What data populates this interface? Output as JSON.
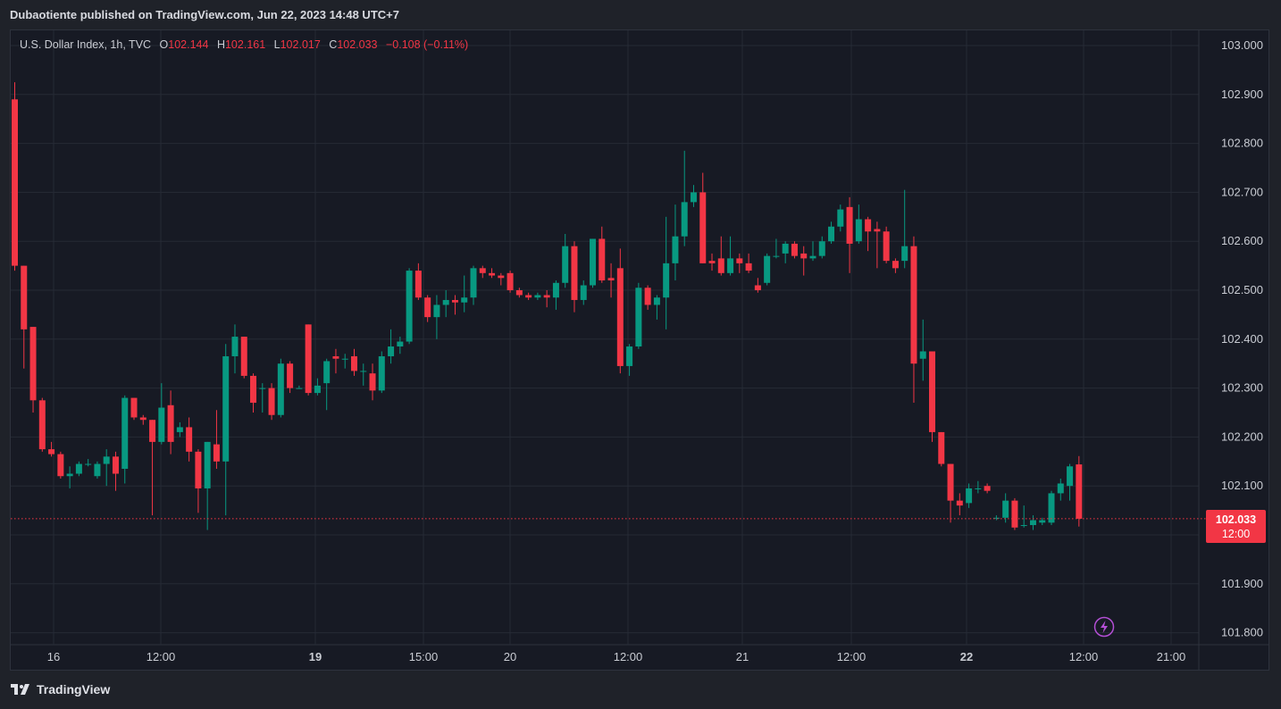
{
  "header": {
    "published": "Dubaotiente published on TradingView.com, Jun 22, 2023 14:48 UTC+7"
  },
  "legend": {
    "symbol": "U.S. Dollar Index, 1h, TVC",
    "o_label": "O",
    "o_value": "102.144",
    "h_label": "H",
    "h_value": "102.161",
    "l_label": "L",
    "l_value": "102.017",
    "c_label": "C",
    "c_value": "102.033",
    "change": "−0.108 (−0.11%)"
  },
  "price_tag": {
    "price": "102.033",
    "time": "12:00"
  },
  "brand": {
    "name": "TradingView"
  },
  "colors": {
    "up": "#089981",
    "down": "#f23645",
    "grid": "#262a35",
    "axis_text": "#c9ccd3",
    "background": "#171a24"
  },
  "chart_data": {
    "type": "candlestick",
    "ylim": [
      101.78,
      103.03
    ],
    "y_ticks": [
      "103.000",
      "102.900",
      "102.800",
      "102.700",
      "102.600",
      "102.500",
      "102.400",
      "102.300",
      "102.200",
      "102.100",
      "101.900",
      "101.800"
    ],
    "x_ticks": [
      "16",
      "12:00",
      "19",
      "15:00",
      "20",
      "12:00",
      "21",
      "12:00",
      "22",
      "12:00",
      "21:00"
    ],
    "last_price": 102.033,
    "candles": [
      {
        "o": 102.89,
        "h": 102.925,
        "l": 102.54,
        "c": 102.55
      },
      {
        "o": 102.55,
        "h": 102.55,
        "l": 102.34,
        "c": 102.42
      },
      {
        "o": 102.425,
        "h": 102.425,
        "l": 102.25,
        "c": 102.275
      },
      {
        "o": 102.275,
        "h": 102.28,
        "l": 102.17,
        "c": 102.175
      },
      {
        "o": 102.175,
        "h": 102.19,
        "l": 102.16,
        "c": 102.165
      },
      {
        "o": 102.165,
        "h": 102.17,
        "l": 102.115,
        "c": 102.12
      },
      {
        "o": 102.12,
        "h": 102.14,
        "l": 102.095,
        "c": 102.125
      },
      {
        "o": 102.125,
        "h": 102.15,
        "l": 102.12,
        "c": 102.145
      },
      {
        "o": 102.145,
        "h": 102.155,
        "l": 102.14,
        "c": 102.145
      },
      {
        "o": 102.12,
        "h": 102.15,
        "l": 102.115,
        "c": 102.145
      },
      {
        "o": 102.145,
        "h": 102.175,
        "l": 102.1,
        "c": 102.16
      },
      {
        "o": 102.16,
        "h": 102.17,
        "l": 102.09,
        "c": 102.125
      },
      {
        "o": 102.135,
        "h": 102.285,
        "l": 102.105,
        "c": 102.28
      },
      {
        "o": 102.28,
        "h": 102.28,
        "l": 102.235,
        "c": 102.24
      },
      {
        "o": 102.24,
        "h": 102.245,
        "l": 102.225,
        "c": 102.235
      },
      {
        "o": 102.235,
        "h": 102.235,
        "l": 102.04,
        "c": 102.19
      },
      {
        "o": 102.19,
        "h": 102.31,
        "l": 102.185,
        "c": 102.26
      },
      {
        "o": 102.265,
        "h": 102.295,
        "l": 102.165,
        "c": 102.19
      },
      {
        "o": 102.21,
        "h": 102.23,
        "l": 102.2,
        "c": 102.22
      },
      {
        "o": 102.22,
        "h": 102.24,
        "l": 102.15,
        "c": 102.17
      },
      {
        "o": 102.17,
        "h": 102.175,
        "l": 102.045,
        "c": 102.095
      },
      {
        "o": 102.095,
        "h": 102.19,
        "l": 102.01,
        "c": 102.19
      },
      {
        "o": 102.185,
        "h": 102.255,
        "l": 102.135,
        "c": 102.15
      },
      {
        "o": 102.15,
        "h": 102.39,
        "l": 102.04,
        "c": 102.365
      },
      {
        "o": 102.365,
        "h": 102.43,
        "l": 102.33,
        "c": 102.405
      },
      {
        "o": 102.405,
        "h": 102.405,
        "l": 102.32,
        "c": 102.325
      },
      {
        "o": 102.325,
        "h": 102.33,
        "l": 102.25,
        "c": 102.27
      },
      {
        "o": 102.3,
        "h": 102.31,
        "l": 102.25,
        "c": 102.3
      },
      {
        "o": 102.3,
        "h": 102.31,
        "l": 102.235,
        "c": 102.245
      },
      {
        "o": 102.245,
        "h": 102.36,
        "l": 102.24,
        "c": 102.35
      },
      {
        "o": 102.35,
        "h": 102.355,
        "l": 102.29,
        "c": 102.3
      },
      {
        "o": 102.3,
        "h": 102.305,
        "l": 102.3,
        "c": 102.3
      },
      {
        "o": 102.43,
        "h": 102.43,
        "l": 102.285,
        "c": 102.29
      },
      {
        "o": 102.29,
        "h": 102.32,
        "l": 102.285,
        "c": 102.305
      },
      {
        "o": 102.31,
        "h": 102.36,
        "l": 102.255,
        "c": 102.355
      },
      {
        "o": 102.365,
        "h": 102.38,
        "l": 102.33,
        "c": 102.36
      },
      {
        "o": 102.36,
        "h": 102.37,
        "l": 102.34,
        "c": 102.36
      },
      {
        "o": 102.365,
        "h": 102.38,
        "l": 102.325,
        "c": 102.335
      },
      {
        "o": 102.335,
        "h": 102.35,
        "l": 102.305,
        "c": 102.335
      },
      {
        "o": 102.33,
        "h": 102.35,
        "l": 102.275,
        "c": 102.295
      },
      {
        "o": 102.295,
        "h": 102.375,
        "l": 102.29,
        "c": 102.365
      },
      {
        "o": 102.365,
        "h": 102.42,
        "l": 102.35,
        "c": 102.385
      },
      {
        "o": 102.385,
        "h": 102.405,
        "l": 102.37,
        "c": 102.395
      },
      {
        "o": 102.395,
        "h": 102.545,
        "l": 102.39,
        "c": 102.54
      },
      {
        "o": 102.54,
        "h": 102.555,
        "l": 102.48,
        "c": 102.485
      },
      {
        "o": 102.485,
        "h": 102.49,
        "l": 102.435,
        "c": 102.445
      },
      {
        "o": 102.445,
        "h": 102.49,
        "l": 102.4,
        "c": 102.47
      },
      {
        "o": 102.47,
        "h": 102.5,
        "l": 102.445,
        "c": 102.48
      },
      {
        "o": 102.48,
        "h": 102.49,
        "l": 102.45,
        "c": 102.475
      },
      {
        "o": 102.475,
        "h": 102.53,
        "l": 102.455,
        "c": 102.485
      },
      {
        "o": 102.485,
        "h": 102.55,
        "l": 102.47,
        "c": 102.545
      },
      {
        "o": 102.545,
        "h": 102.55,
        "l": 102.525,
        "c": 102.535
      },
      {
        "o": 102.535,
        "h": 102.545,
        "l": 102.525,
        "c": 102.53
      },
      {
        "o": 102.53,
        "h": 102.535,
        "l": 102.51,
        "c": 102.525
      },
      {
        "o": 102.535,
        "h": 102.54,
        "l": 102.495,
        "c": 102.5
      },
      {
        "o": 102.5,
        "h": 102.505,
        "l": 102.485,
        "c": 102.49
      },
      {
        "o": 102.49,
        "h": 102.495,
        "l": 102.48,
        "c": 102.485
      },
      {
        "o": 102.485,
        "h": 102.495,
        "l": 102.48,
        "c": 102.49
      },
      {
        "o": 102.49,
        "h": 102.5,
        "l": 102.465,
        "c": 102.485
      },
      {
        "o": 102.485,
        "h": 102.52,
        "l": 102.46,
        "c": 102.515
      },
      {
        "o": 102.515,
        "h": 102.615,
        "l": 102.505,
        "c": 102.59
      },
      {
        "o": 102.59,
        "h": 102.6,
        "l": 102.455,
        "c": 102.48
      },
      {
        "o": 102.48,
        "h": 102.52,
        "l": 102.47,
        "c": 102.51
      },
      {
        "o": 102.51,
        "h": 102.605,
        "l": 102.505,
        "c": 102.605
      },
      {
        "o": 102.605,
        "h": 102.63,
        "l": 102.515,
        "c": 102.52
      },
      {
        "o": 102.525,
        "h": 102.555,
        "l": 102.485,
        "c": 102.52
      },
      {
        "o": 102.545,
        "h": 102.585,
        "l": 102.33,
        "c": 102.345
      },
      {
        "o": 102.345,
        "h": 102.39,
        "l": 102.325,
        "c": 102.385
      },
      {
        "o": 102.385,
        "h": 102.515,
        "l": 102.38,
        "c": 102.505
      },
      {
        "o": 102.505,
        "h": 102.51,
        "l": 102.46,
        "c": 102.47
      },
      {
        "o": 102.47,
        "h": 102.49,
        "l": 102.44,
        "c": 102.485
      },
      {
        "o": 102.485,
        "h": 102.65,
        "l": 102.42,
        "c": 102.555
      },
      {
        "o": 102.555,
        "h": 102.675,
        "l": 102.52,
        "c": 102.61
      },
      {
        "o": 102.61,
        "h": 102.785,
        "l": 102.59,
        "c": 102.68
      },
      {
        "o": 102.68,
        "h": 102.715,
        "l": 102.67,
        "c": 102.7
      },
      {
        "o": 102.7,
        "h": 102.74,
        "l": 102.555,
        "c": 102.555
      },
      {
        "o": 102.56,
        "h": 102.575,
        "l": 102.54,
        "c": 102.555
      },
      {
        "o": 102.565,
        "h": 102.61,
        "l": 102.53,
        "c": 102.535
      },
      {
        "o": 102.535,
        "h": 102.61,
        "l": 102.53,
        "c": 102.565
      },
      {
        "o": 102.565,
        "h": 102.575,
        "l": 102.535,
        "c": 102.555
      },
      {
        "o": 102.555,
        "h": 102.575,
        "l": 102.535,
        "c": 102.54
      },
      {
        "o": 102.51,
        "h": 102.525,
        "l": 102.495,
        "c": 102.5
      },
      {
        "o": 102.515,
        "h": 102.575,
        "l": 102.51,
        "c": 102.57
      },
      {
        "o": 102.57,
        "h": 102.605,
        "l": 102.565,
        "c": 102.57
      },
      {
        "o": 102.575,
        "h": 102.6,
        "l": 102.555,
        "c": 102.595
      },
      {
        "o": 102.595,
        "h": 102.6,
        "l": 102.565,
        "c": 102.57
      },
      {
        "o": 102.575,
        "h": 102.59,
        "l": 102.53,
        "c": 102.565
      },
      {
        "o": 102.565,
        "h": 102.6,
        "l": 102.56,
        "c": 102.57
      },
      {
        "o": 102.57,
        "h": 102.61,
        "l": 102.565,
        "c": 102.6
      },
      {
        "o": 102.6,
        "h": 102.64,
        "l": 102.595,
        "c": 102.63
      },
      {
        "o": 102.63,
        "h": 102.675,
        "l": 102.62,
        "c": 102.665
      },
      {
        "o": 102.67,
        "h": 102.69,
        "l": 102.535,
        "c": 102.595
      },
      {
        "o": 102.6,
        "h": 102.675,
        "l": 102.595,
        "c": 102.645
      },
      {
        "o": 102.645,
        "h": 102.65,
        "l": 102.58,
        "c": 102.62
      },
      {
        "o": 102.625,
        "h": 102.64,
        "l": 102.545,
        "c": 102.62
      },
      {
        "o": 102.62,
        "h": 102.63,
        "l": 102.555,
        "c": 102.56
      },
      {
        "o": 102.56,
        "h": 102.565,
        "l": 102.535,
        "c": 102.545
      },
      {
        "o": 102.56,
        "h": 102.705,
        "l": 102.545,
        "c": 102.59
      },
      {
        "o": 102.59,
        "h": 102.61,
        "l": 102.27,
        "c": 102.35
      },
      {
        "o": 102.36,
        "h": 102.44,
        "l": 102.315,
        "c": 102.375
      },
      {
        "o": 102.375,
        "h": 102.375,
        "l": 102.19,
        "c": 102.21
      },
      {
        "o": 102.21,
        "h": 102.21,
        "l": 102.14,
        "c": 102.145
      },
      {
        "o": 102.145,
        "h": 102.145,
        "l": 102.025,
        "c": 102.07
      },
      {
        "o": 102.07,
        "h": 102.085,
        "l": 102.04,
        "c": 102.06
      },
      {
        "o": 102.065,
        "h": 102.105,
        "l": 102.055,
        "c": 102.095
      },
      {
        "o": 102.095,
        "h": 102.11,
        "l": 102.085,
        "c": 102.095
      },
      {
        "o": 102.1,
        "h": 102.105,
        "l": 102.085,
        "c": 102.09
      },
      {
        "o": 102.035,
        "h": 102.04,
        "l": 102.03,
        "c": 102.035
      },
      {
        "o": 102.035,
        "h": 102.085,
        "l": 102.025,
        "c": 102.07
      },
      {
        "o": 102.07,
        "h": 102.075,
        "l": 102.01,
        "c": 102.015
      },
      {
        "o": 102.02,
        "h": 102.06,
        "l": 102.015,
        "c": 102.02
      },
      {
        "o": 102.02,
        "h": 102.04,
        "l": 102.01,
        "c": 102.03
      },
      {
        "o": 102.025,
        "h": 102.035,
        "l": 102.02,
        "c": 102.03
      },
      {
        "o": 102.025,
        "h": 102.09,
        "l": 102.02,
        "c": 102.085
      },
      {
        "o": 102.085,
        "h": 102.115,
        "l": 102.07,
        "c": 102.105
      },
      {
        "o": 102.1,
        "h": 102.145,
        "l": 102.07,
        "c": 102.14
      },
      {
        "o": 102.144,
        "h": 102.161,
        "l": 102.017,
        "c": 102.033
      }
    ]
  }
}
